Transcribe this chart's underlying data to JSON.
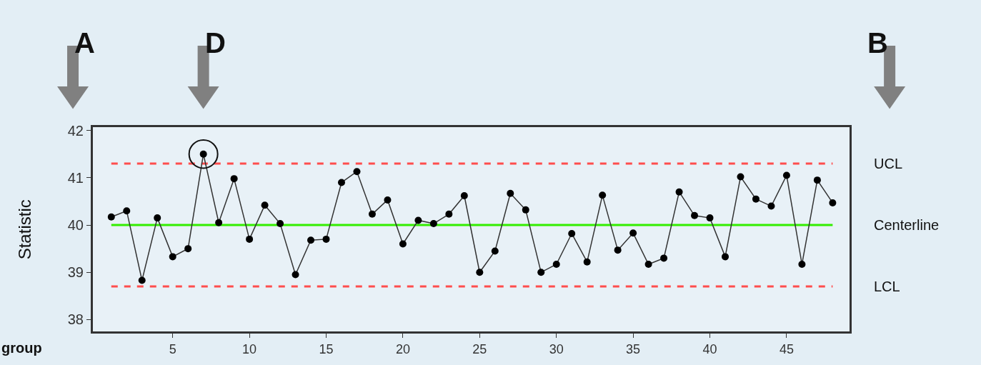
{
  "chart_data": {
    "type": "line",
    "xlabel": "group",
    "ylabel": "Statistic",
    "x": [
      1,
      2,
      3,
      4,
      5,
      6,
      7,
      8,
      9,
      10,
      11,
      12,
      13,
      14,
      15,
      16,
      17,
      18,
      19,
      20,
      21,
      22,
      23,
      24,
      25,
      26,
      27,
      28,
      29,
      30,
      31,
      32,
      33,
      34,
      35,
      36,
      37,
      38,
      39,
      40,
      41,
      42,
      43,
      44,
      45,
      46,
      47,
      48
    ],
    "series": [
      {
        "color": "#000000",
        "values": [
          40.17,
          40.3,
          38.83,
          40.15,
          39.33,
          39.5,
          41.5,
          40.05,
          40.98,
          39.7,
          40.42,
          40.03,
          38.95,
          39.68,
          39.7,
          40.9,
          41.13,
          40.23,
          40.53,
          39.6,
          40.1,
          40.03,
          40.23,
          40.62,
          39.0,
          39.45,
          40.67,
          40.32,
          39.0,
          39.17,
          39.82,
          39.22,
          40.63,
          39.47,
          39.83,
          39.17,
          39.3,
          40.7,
          40.2,
          40.15,
          39.33,
          41.02,
          40.55,
          40.4,
          41.05,
          39.17,
          40.95,
          40.47
        ]
      }
    ],
    "xlim": [
      -0.2,
      49.1
    ],
    "xticks": [
      5,
      10,
      15,
      20,
      25,
      30,
      35,
      40,
      45
    ],
    "ylim": [
      37.75,
      42.07
    ],
    "yticks": [
      38,
      39,
      40,
      41,
      42
    ],
    "ref_lines": [
      {
        "axis": "y",
        "value": 41.3,
        "label": "UCL",
        "color": "#ff4d4d",
        "line_style": "dashed"
      },
      {
        "axis": "y",
        "value": 40,
        "label": "Centerline",
        "color": "#33ee00",
        "line_style": "solid"
      },
      {
        "axis": "y",
        "value": 38.7,
        "label": "LCL",
        "color": "#ff4d4d",
        "line_style": "dashed"
      }
    ],
    "annotations": [
      "A",
      "D",
      "B"
    ],
    "marker": "circle",
    "line_style": "solid"
  }
}
